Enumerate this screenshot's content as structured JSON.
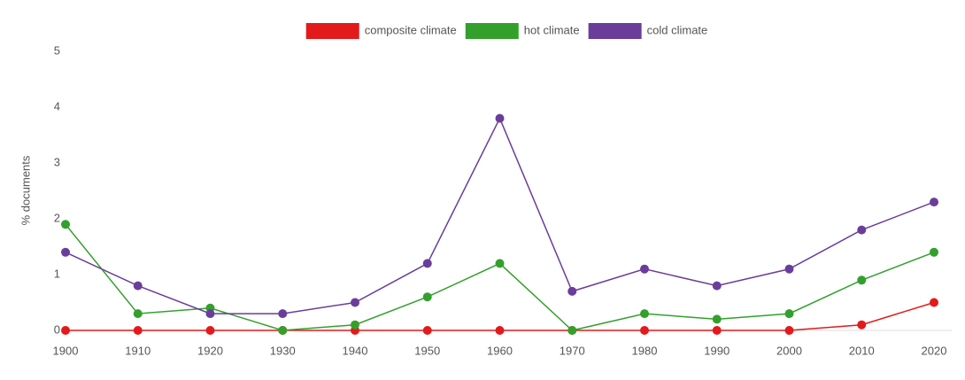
{
  "chart_data": {
    "type": "line",
    "y_label": "% documents",
    "x": [
      1900,
      1910,
      1920,
      1930,
      1940,
      1950,
      1960,
      1970,
      1980,
      1990,
      2000,
      2010,
      2020
    ],
    "series": [
      {
        "name": "composite climate",
        "color": "#e31a1c",
        "values": [
          0,
          0,
          0,
          0,
          0,
          0,
          0,
          0,
          0,
          0,
          0,
          0.1,
          0.5
        ]
      },
      {
        "name": "hot climate",
        "color": "#33a02c",
        "values": [
          1.9,
          0.3,
          0.4,
          0,
          0.1,
          0.6,
          1.2,
          0,
          0.3,
          0.2,
          0.3,
          0.9,
          1.4
        ]
      },
      {
        "name": "cold climate",
        "color": "#6a3d9a",
        "values": [
          1.4,
          0.8,
          0.3,
          0.3,
          0.5,
          1.2,
          3.8,
          0.7,
          1.1,
          0.8,
          1.1,
          1.8,
          2.3
        ]
      }
    ],
    "xlim": [
      1900,
      2020
    ],
    "xticks": [
      1900,
      1910,
      1920,
      1930,
      1940,
      1950,
      1960,
      1970,
      1980,
      1990,
      2000,
      2010,
      2020
    ],
    "ylim": [
      0,
      5
    ],
    "yticks": [
      0,
      1,
      2,
      3,
      4,
      5
    ],
    "legend": "top"
  }
}
